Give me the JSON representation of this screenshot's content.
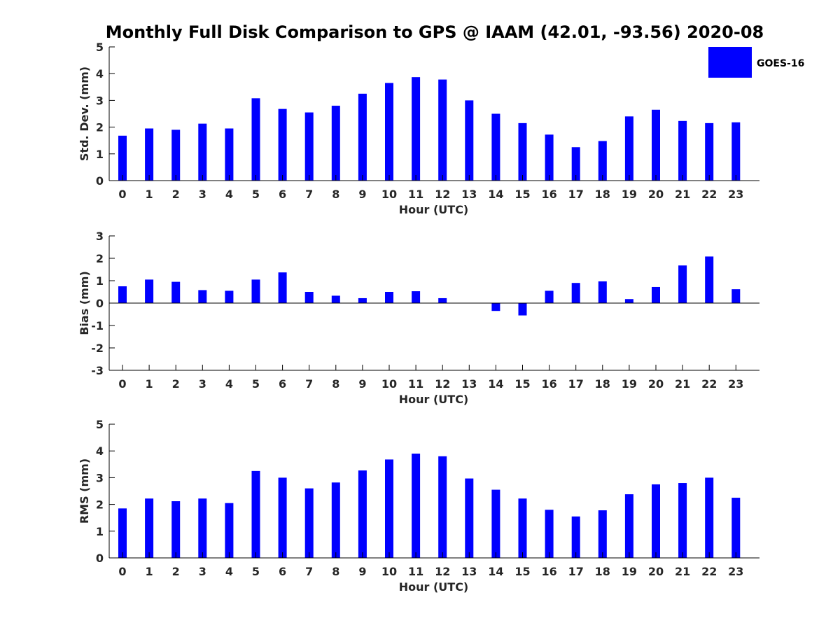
{
  "title": "Monthly Full Disk Comparison to GPS @ IAAM (42.01, -93.56) 2020-08",
  "legend": {
    "label": "GOES-16",
    "color": "#0000ff"
  },
  "chart_data": [
    {
      "type": "bar",
      "name": "std-dev",
      "series_name": "GOES-16",
      "color": "#0000ff",
      "categories": [
        "0",
        "1",
        "2",
        "3",
        "4",
        "5",
        "6",
        "7",
        "8",
        "9",
        "10",
        "11",
        "12",
        "13",
        "14",
        "15",
        "16",
        "17",
        "18",
        "19",
        "20",
        "21",
        "22",
        "23"
      ],
      "values": [
        1.68,
        1.95,
        1.9,
        2.13,
        1.95,
        3.08,
        2.68,
        2.55,
        2.8,
        3.25,
        3.65,
        3.87,
        3.78,
        3.0,
        2.5,
        2.15,
        1.72,
        1.25,
        1.48,
        2.4,
        2.65,
        2.23,
        2.15,
        2.18
      ],
      "xlabel": "Hour (UTC)",
      "ylabel": "Std. Dev. (mm)",
      "ylim": [
        0,
        5
      ],
      "yticks": [
        0,
        1,
        2,
        3,
        4,
        5
      ]
    },
    {
      "type": "bar",
      "name": "bias",
      "series_name": "GOES-16",
      "color": "#0000ff",
      "categories": [
        "0",
        "1",
        "2",
        "3",
        "4",
        "5",
        "6",
        "7",
        "8",
        "9",
        "10",
        "11",
        "12",
        "13",
        "14",
        "15",
        "16",
        "17",
        "18",
        "19",
        "20",
        "21",
        "22",
        "23"
      ],
      "values": [
        0.75,
        1.05,
        0.95,
        0.58,
        0.55,
        1.05,
        1.37,
        0.5,
        0.33,
        0.22,
        0.5,
        0.53,
        0.22,
        0.0,
        -0.35,
        -0.55,
        0.55,
        0.9,
        0.97,
        0.18,
        0.72,
        1.68,
        2.08,
        0.62
      ],
      "xlabel": "Hour (UTC)",
      "ylabel": "Bias (mm)",
      "ylim": [
        -3,
        3
      ],
      "yticks": [
        -3,
        -2,
        -1,
        0,
        1,
        2,
        3
      ]
    },
    {
      "type": "bar",
      "name": "rms",
      "series_name": "GOES-16",
      "color": "#0000ff",
      "categories": [
        "0",
        "1",
        "2",
        "3",
        "4",
        "5",
        "6",
        "7",
        "8",
        "9",
        "10",
        "11",
        "12",
        "13",
        "14",
        "15",
        "16",
        "17",
        "18",
        "19",
        "20",
        "21",
        "22",
        "23"
      ],
      "values": [
        1.85,
        2.22,
        2.12,
        2.22,
        2.05,
        3.25,
        3.0,
        2.6,
        2.82,
        3.27,
        3.68,
        3.9,
        3.8,
        2.97,
        2.55,
        2.22,
        1.8,
        1.55,
        1.78,
        2.38,
        2.75,
        2.8,
        3.0,
        2.25
      ],
      "xlabel": "Hour (UTC)",
      "ylabel": "RMS (mm)",
      "ylim": [
        0,
        5
      ],
      "yticks": [
        0,
        1,
        2,
        3,
        4,
        5
      ]
    }
  ]
}
